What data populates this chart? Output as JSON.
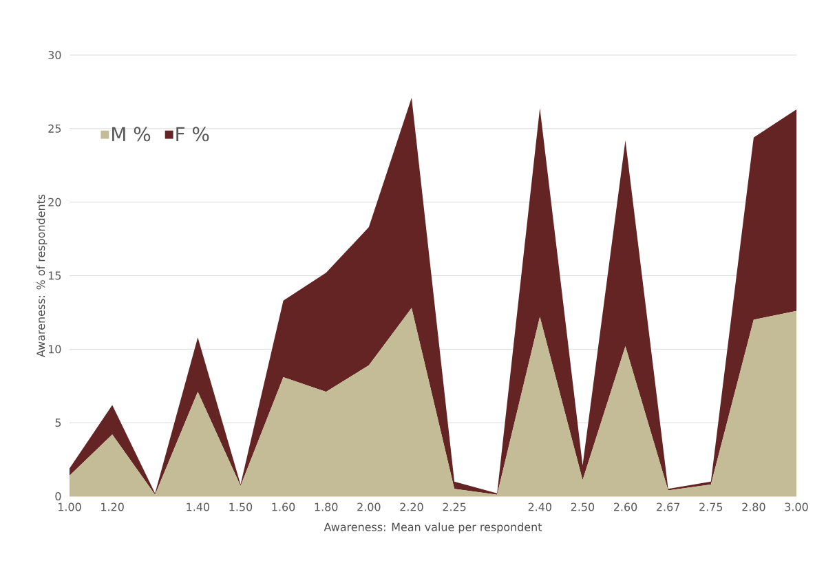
{
  "chart_data": {
    "type": "area",
    "stacked": true,
    "xlabel": "Awareness: Mean value per respondent",
    "ylabel": "Awareness: % of respondents",
    "categories": [
      "1.00",
      "1.20",
      null,
      "1.40",
      "1.50",
      "1.60",
      "1.80",
      "2.00",
      "2.20",
      "2.25",
      null,
      "2.40",
      "2.50",
      "2.60",
      "2.67",
      "2.75",
      "2.80",
      "3.00"
    ],
    "series": [
      {
        "name": "M %",
        "color": "#c4bc96",
        "values": [
          1.4,
          4.2,
          0.1,
          7.1,
          0.7,
          8.1,
          7.1,
          8.9,
          12.8,
          0.5,
          0.1,
          12.2,
          1.1,
          10.2,
          0.4,
          0.8,
          12.0,
          12.6
        ]
      },
      {
        "name": "F %",
        "color": "#632423",
        "values": [
          0.5,
          2.0,
          0.1,
          3.7,
          0.1,
          5.2,
          8.1,
          9.4,
          14.3,
          0.5,
          0.1,
          14.2,
          1.0,
          14.0,
          0.1,
          0.2,
          12.4,
          13.7
        ]
      }
    ],
    "ylim": [
      0,
      30
    ],
    "yticks": [
      0,
      5,
      10,
      15,
      20,
      25,
      30
    ],
    "grid": "y",
    "legend": "top left"
  }
}
